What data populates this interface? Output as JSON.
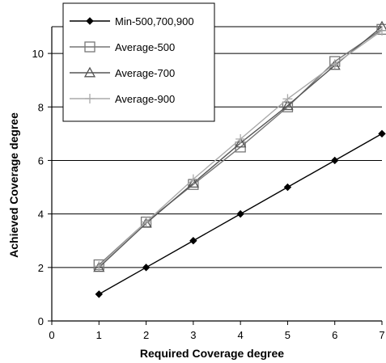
{
  "chart_data": {
    "type": "line",
    "xlabel": "Required Coverage degree",
    "ylabel": "Achieved Coverage degree",
    "xlim": [
      0,
      7
    ],
    "ylim": [
      0,
      11
    ],
    "xticks": [
      0,
      1,
      2,
      3,
      4,
      5,
      6,
      7
    ],
    "yticks": [
      0,
      2,
      4,
      6,
      8,
      10
    ],
    "grid": "horizontal",
    "legend_position": "top-left",
    "series": [
      {
        "name": "Min-500,700,900",
        "marker": "diamond-filled",
        "color": "#000000",
        "x": [
          1,
          2,
          3,
          4,
          5,
          6,
          7
        ],
        "y": [
          1,
          2,
          3,
          4,
          5,
          6,
          7
        ]
      },
      {
        "name": "Average-500",
        "marker": "square-open",
        "color": "#777777",
        "x": [
          1,
          2,
          3,
          4,
          5,
          6,
          7
        ],
        "y": [
          2.1,
          3.7,
          5.1,
          6.5,
          8.0,
          9.7,
          10.9
        ]
      },
      {
        "name": "Average-700",
        "marker": "triangle-open",
        "color": "#555555",
        "x": [
          1,
          2,
          3,
          4,
          5,
          6,
          7
        ],
        "y": [
          2.0,
          3.65,
          5.15,
          6.65,
          8.05,
          9.55,
          11.0
        ]
      },
      {
        "name": "Average-900",
        "marker": "plus",
        "color": "#aaaaaa",
        "x": [
          1,
          2,
          3,
          4,
          5,
          6,
          7
        ],
        "y": [
          2.05,
          3.7,
          5.3,
          6.8,
          8.3,
          9.6,
          10.85
        ]
      }
    ]
  }
}
